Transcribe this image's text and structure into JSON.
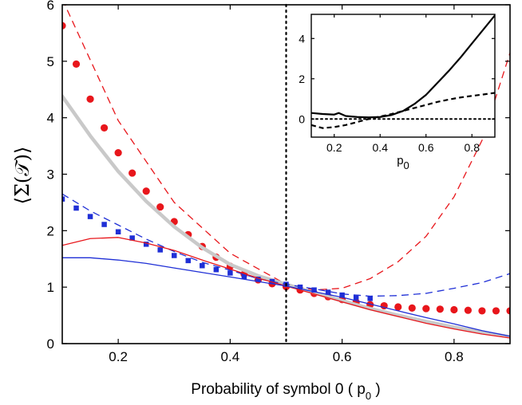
{
  "chart_data": [
    {
      "type": "line",
      "title": "",
      "xlabel": "Probability of symbol 0 ( p",
      "xlabel_sub": "0",
      "xlabel_end": " )",
      "ylabel": "⟨Σ(𝒯)⟩",
      "xlim": [
        0.1,
        0.9
      ],
      "ylim": [
        0,
        6
      ],
      "xticks": [
        0.2,
        0.4,
        0.6,
        0.8
      ],
      "yticks": [
        0,
        1,
        2,
        3,
        4,
        5,
        6
      ],
      "xtick_labels": [
        "0.2",
        "0.4",
        "0.6",
        "0.8"
      ],
      "ytick_labels": [
        "0",
        "1",
        "2",
        "3",
        "4",
        "5",
        "6"
      ],
      "vline_x": 0.5,
      "grid": false,
      "series": [
        {
          "style": "dashed",
          "color": "#e8161b",
          "x": [
            0.1,
            0.2,
            0.3,
            0.4,
            0.5,
            0.55,
            0.6,
            0.65,
            0.7,
            0.75,
            0.8,
            0.85,
            0.9
          ],
          "y": [
            6.1,
            3.95,
            2.5,
            1.6,
            1.05,
            0.95,
            0.98,
            1.15,
            1.45,
            1.9,
            2.6,
            3.6,
            5.15
          ]
        },
        {
          "style": "points",
          "color": "#e8161b",
          "x": [
            0.1,
            0.125,
            0.15,
            0.175,
            0.2,
            0.225,
            0.25,
            0.275,
            0.3,
            0.325,
            0.35,
            0.375,
            0.4,
            0.425,
            0.45,
            0.475,
            0.5,
            0.525,
            0.55,
            0.575,
            0.6,
            0.625,
            0.65,
            0.675,
            0.7,
            0.725,
            0.75,
            0.775,
            0.8,
            0.825,
            0.85,
            0.875,
            0.9
          ],
          "y": [
            5.63,
            4.95,
            4.33,
            3.82,
            3.38,
            3.02,
            2.7,
            2.42,
            2.16,
            1.93,
            1.72,
            1.53,
            1.37,
            1.23,
            1.13,
            1.06,
            1.01,
            0.95,
            0.89,
            0.83,
            0.78,
            0.73,
            0.69,
            0.67,
            0.65,
            0.63,
            0.62,
            0.61,
            0.6,
            0.59,
            0.58,
            0.58,
            0.58
          ]
        },
        {
          "style": "solid-thick",
          "color": "#c9c9c9",
          "x": [
            0.1,
            0.15,
            0.2,
            0.25,
            0.3,
            0.35,
            0.4,
            0.45,
            0.5,
            0.55,
            0.6,
            0.65,
            0.7,
            0.75,
            0.8,
            0.85,
            0.9
          ],
          "y": [
            4.38,
            3.68,
            3.05,
            2.52,
            2.07,
            1.7,
            1.4,
            1.2,
            1.05,
            0.9,
            0.76,
            0.62,
            0.5,
            0.39,
            0.29,
            0.2,
            0.12
          ]
        },
        {
          "style": "dashed",
          "color": "#1f2fd6",
          "x": [
            0.1,
            0.15,
            0.2,
            0.25,
            0.3,
            0.35,
            0.4,
            0.45,
            0.5,
            0.55,
            0.6,
            0.65,
            0.7,
            0.75,
            0.8,
            0.85,
            0.9
          ],
          "y": [
            2.65,
            2.35,
            2.1,
            1.85,
            1.63,
            1.44,
            1.3,
            1.15,
            1.05,
            0.97,
            0.88,
            0.84,
            0.85,
            0.89,
            0.98,
            1.08,
            1.24
          ]
        },
        {
          "style": "squares",
          "color": "#1f2fd6",
          "x": [
            0.1,
            0.125,
            0.15,
            0.175,
            0.2,
            0.225,
            0.25,
            0.275,
            0.3,
            0.325,
            0.35,
            0.375,
            0.4,
            0.425,
            0.45,
            0.475,
            0.5,
            0.525,
            0.55,
            0.575,
            0.6,
            0.625,
            0.65
          ],
          "y": [
            2.56,
            2.4,
            2.25,
            2.11,
            1.98,
            1.87,
            1.76,
            1.66,
            1.56,
            1.47,
            1.38,
            1.31,
            1.25,
            1.19,
            1.14,
            1.1,
            1.05,
            1.0,
            0.95,
            0.91,
            0.86,
            0.82,
            0.8
          ]
        },
        {
          "style": "solid",
          "color": "#e8161b",
          "x": [
            0.1,
            0.15,
            0.2,
            0.25,
            0.3,
            0.35,
            0.4,
            0.45,
            0.5,
            0.55,
            0.6,
            0.65,
            0.7,
            0.75,
            0.8,
            0.85,
            0.9
          ],
          "y": [
            1.74,
            1.86,
            1.88,
            1.78,
            1.65,
            1.48,
            1.32,
            1.16,
            1.02,
            0.88,
            0.74,
            0.6,
            0.48,
            0.36,
            0.26,
            0.17,
            0.1
          ]
        },
        {
          "style": "solid",
          "color": "#1f2fd6",
          "x": [
            0.1,
            0.15,
            0.2,
            0.25,
            0.3,
            0.35,
            0.4,
            0.45,
            0.5,
            0.55,
            0.6,
            0.65,
            0.7,
            0.75,
            0.8,
            0.85,
            0.9
          ],
          "y": [
            1.52,
            1.52,
            1.48,
            1.42,
            1.34,
            1.26,
            1.18,
            1.1,
            1.02,
            0.92,
            0.82,
            0.7,
            0.58,
            0.46,
            0.35,
            0.23,
            0.13
          ]
        }
      ]
    },
    {
      "type": "line",
      "title": "",
      "xlabel": "p",
      "xlabel_sub": "0",
      "xlim": [
        0.1,
        0.9
      ],
      "ylim": [
        -0.9,
        5.2
      ],
      "xticks": [
        0.2,
        0.4,
        0.6,
        0.8
      ],
      "yticks": [
        0,
        2,
        4
      ],
      "xtick_labels": [
        "0.2",
        "0.4",
        "0.6",
        "0.8"
      ],
      "ytick_labels": [
        "0",
        "2",
        "4"
      ],
      "legend": "none",
      "series": [
        {
          "style": "solid",
          "color": "#000000",
          "x": [
            0.1,
            0.15,
            0.2,
            0.22,
            0.25,
            0.3,
            0.35,
            0.4,
            0.45,
            0.5,
            0.55,
            0.6,
            0.65,
            0.7,
            0.75,
            0.8,
            0.85,
            0.9
          ],
          "y": [
            0.3,
            0.25,
            0.22,
            0.3,
            0.15,
            0.1,
            0.08,
            0.1,
            0.2,
            0.4,
            0.75,
            1.2,
            1.8,
            2.4,
            3.05,
            3.75,
            4.45,
            5.15
          ]
        },
        {
          "style": "dashed",
          "color": "#000000",
          "x": [
            0.1,
            0.15,
            0.2,
            0.25,
            0.3,
            0.35,
            0.4,
            0.45,
            0.5,
            0.55,
            0.6,
            0.65,
            0.7,
            0.75,
            0.8,
            0.85,
            0.9
          ],
          "y": [
            -0.3,
            -0.45,
            -0.4,
            -0.3,
            -0.15,
            0.0,
            0.12,
            0.25,
            0.4,
            0.55,
            0.7,
            0.85,
            0.97,
            1.07,
            1.15,
            1.22,
            1.3
          ]
        },
        {
          "style": "dotted",
          "color": "#000000",
          "x": [
            0.1,
            0.9
          ],
          "y": [
            0,
            0
          ]
        }
      ]
    }
  ]
}
